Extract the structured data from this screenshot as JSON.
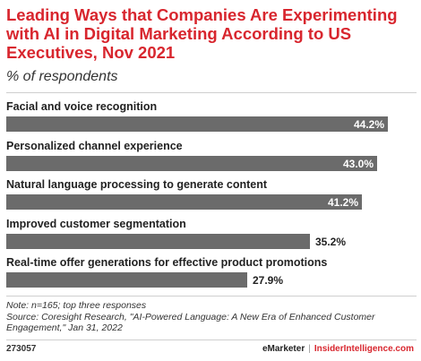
{
  "title": "Leading Ways that Companies Are Experimenting with AI in Digital Marketing According to US Executives, Nov 2021",
  "subtitle": "% of respondents",
  "chart_data": {
    "type": "bar",
    "orientation": "horizontal",
    "categories": [
      "Facial and voice recognition",
      "Personalized channel experience",
      "Natural language processing to generate content",
      "Improved customer segmentation",
      "Real-time offer generations for effective product promotions"
    ],
    "values": [
      44.2,
      43.0,
      41.2,
      35.2,
      27.9
    ],
    "value_labels": [
      "44.2%",
      "43.0%",
      "41.2%",
      "35.2%",
      "27.9%"
    ],
    "xlim": [
      0,
      44.2
    ],
    "bar_color": "#6b6b6b",
    "grid": false
  },
  "note": "Note: n=165; top three responses",
  "source": "Source: Coresight Research, \"AI-Powered Language: A New Era of Enhanced Customer Engagement,\" Jan 31, 2022",
  "footer": {
    "chart_id": "273057",
    "brand_left": "eMarketer",
    "brand_sep": "|",
    "brand_right": "InsiderIntelligence.com"
  },
  "colors": {
    "accent": "#d8262e",
    "bar": "#6b6b6b"
  }
}
